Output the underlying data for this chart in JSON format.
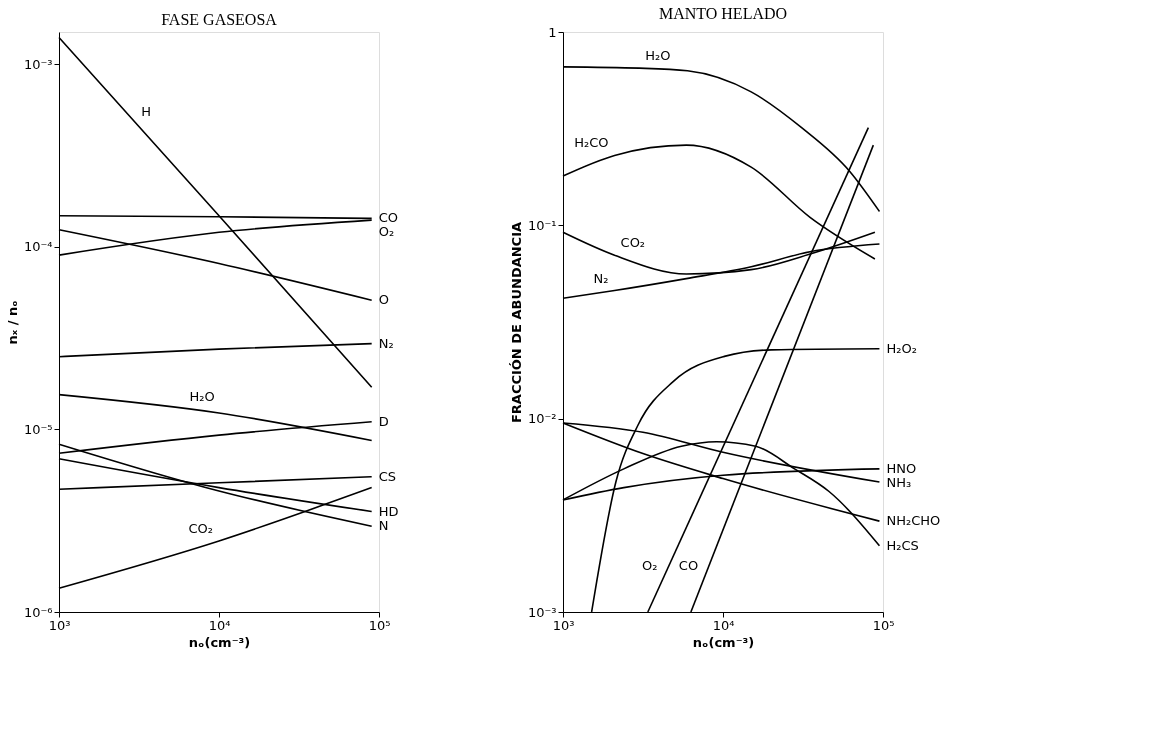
{
  "chart_data": [
    {
      "type": "line",
      "title": "FASE GASEOSA",
      "xlabel": "nₒ(cm⁻³)",
      "ylabel": "nₓ / nₒ",
      "log": "xy",
      "grid": false,
      "legend": false,
      "marker": "none",
      "line_style": "solid",
      "xlim": [
        1000,
        100000
      ],
      "ylim": [
        1e-06,
        0.0015
      ],
      "xticks": [
        {
          "value": 1000,
          "label": "10³"
        },
        {
          "value": 10000,
          "label": "10⁴"
        },
        {
          "value": 100000,
          "label": "10⁵"
        }
      ],
      "yticks": [
        {
          "value": 1e-06,
          "label": "10⁻⁶"
        },
        {
          "value": 1e-05,
          "label": "10⁻⁵"
        },
        {
          "value": 0.0001,
          "label": "10⁻⁴"
        },
        {
          "value": 0.001,
          "label": "10⁻³"
        }
      ],
      "series": [
        {
          "color": "#000000",
          "x": [
            1000,
            10000,
            90000
          ],
          "values": [
            0.0014,
            0.000148,
            1.7e-05
          ]
        },
        {
          "name": "CO",
          "color": "#000000",
          "x": [
            1000,
            10000,
            90000
          ],
          "values": [
            0.000148,
            0.000146,
            0.000143
          ]
        },
        {
          "name": "O₂",
          "color": "#000000",
          "x": [
            1000,
            10000,
            90000
          ],
          "values": [
            9e-05,
            0.00012,
            0.00014
          ]
        },
        {
          "name": "O",
          "color": "#000000",
          "x": [
            1000,
            10000,
            90000
          ],
          "values": [
            0.000124,
            8.1e-05,
            5.1e-05
          ]
        },
        {
          "name": "N₂",
          "color": "#000000",
          "x": [
            1000,
            10000,
            90000
          ],
          "values": [
            2.5e-05,
            2.75e-05,
            2.95e-05
          ]
        },
        {
          "color": "#000000",
          "x": [
            1000,
            10000,
            90000
          ],
          "values": [
            1.55e-05,
            1.23e-05,
            8.7e-06
          ]
        },
        {
          "name": "D",
          "color": "#000000",
          "x": [
            1000,
            10000,
            90000
          ],
          "values": [
            7.4e-06,
            9.3e-06,
            1.1e-05
          ]
        },
        {
          "name": "CS",
          "color": "#000000",
          "x": [
            1000,
            10000,
            90000
          ],
          "values": [
            4.7e-06,
            5.1e-06,
            5.5e-06
          ]
        },
        {
          "name": "HD",
          "color": "#000000",
          "x": [
            1000,
            10000,
            90000
          ],
          "values": [
            6.9e-06,
            4.8e-06,
            3.55e-06
          ]
        },
        {
          "name": "N",
          "color": "#000000",
          "x": [
            1000,
            10000,
            90000
          ],
          "values": [
            8.3e-06,
            4.6e-06,
            2.95e-06
          ]
        },
        {
          "color": "#000000",
          "x": [
            1000,
            10000,
            90000
          ],
          "values": [
            1.35e-06,
            2.45e-06,
            4.8e-06
          ]
        }
      ],
      "annotations": [
        {
          "text": "H",
          "x": 3000,
          "y": 0.00047
        },
        {
          "text": "H₂O",
          "x": 6000,
          "y": 1.29e-05
        },
        {
          "text": "CO₂",
          "x": 10000,
          "y": 2.45e-06
        }
      ]
    },
    {
      "type": "line",
      "title": "MANTO HELADO",
      "xlabel": "nₒ(cm⁻³)",
      "ylabel": "FRACCIÓN DE ABUNDANCIA",
      "log": "xy",
      "grid": false,
      "legend": false,
      "marker": "none",
      "line_style": "solid",
      "xlim": [
        1000,
        100000
      ],
      "ylim": [
        0.001,
        1
      ],
      "xticks": [
        {
          "value": 1000,
          "label": "10³"
        },
        {
          "value": 10000,
          "label": "10⁴"
        },
        {
          "value": 100000,
          "label": "10⁵"
        }
      ],
      "yticks": [
        {
          "value": 0.001,
          "label": "10⁻³"
        },
        {
          "value": 0.01,
          "label": "10⁻²"
        },
        {
          "value": 0.1,
          "label": "10⁻¹"
        },
        1
      ],
      "series": [
        {
          "color": "#000000",
          "x": [
            1000,
            3000,
            6000,
            15000,
            31000,
            62000,
            95000
          ],
          "values": [
            0.66,
            0.65,
            0.63,
            0.49,
            0.32,
            0.19,
            0.118
          ]
        },
        {
          "color": "#000000",
          "x": [
            1000,
            2100,
            5900,
            15000,
            35000,
            89000
          ],
          "values": [
            0.18,
            0.23,
            0.26,
            0.2,
            0.11,
            0.067
          ]
        },
        {
          "color": "#000000",
          "x": [
            1000,
            2100,
            5900,
            15000,
            35000,
            89000
          ],
          "values": [
            0.092,
            0.07,
            0.056,
            0.059,
            0.071,
            0.092
          ]
        },
        {
          "color": "#000000",
          "x": [
            1000,
            2100,
            5900,
            15000,
            35000,
            95000
          ],
          "values": [
            0.042,
            0.046,
            0.053,
            0.061,
            0.073,
            0.08
          ]
        },
        {
          "name": "H₂O₂",
          "color": "#000000",
          "x": [
            1510,
            2140,
            2950,
            4900,
            10200,
            20000,
            95000
          ],
          "values": [
            0.001,
            0.0047,
            0.0093,
            0.0156,
            0.021,
            0.0227,
            0.023
          ]
        },
        {
          "color": "#000000",
          "x": [
            3390,
            81000
          ],
          "values": [
            0.001,
            0.32
          ]
        },
        {
          "color": "#000000",
          "x": [
            6300,
            87000
          ],
          "values": [
            0.001,
            0.26
          ]
        },
        {
          "name": "HNO",
          "color": "#000000",
          "x": [
            1000,
            2400,
            10000,
            95000
          ],
          "values": [
            0.0038,
            0.0044,
            0.0051,
            0.0055
          ]
        },
        {
          "name": "NH₃",
          "color": "#000000",
          "x": [
            1000,
            3160,
            10000,
            95000
          ],
          "values": [
            0.0095,
            0.0085,
            0.0067,
            0.0047
          ]
        },
        {
          "name": "NH₂CHO",
          "color": "#000000",
          "x": [
            1000,
            3160,
            10000,
            95000
          ],
          "values": [
            0.0095,
            0.0066,
            0.0049,
            0.00295
          ]
        },
        {
          "name": "H₂CS",
          "color": "#000000",
          "x": [
            1000,
            2400,
            5500,
            9100,
            16000,
            28000,
            46000,
            95000
          ],
          "values": [
            0.0038,
            0.0055,
            0.0072,
            0.0076,
            0.0072,
            0.0055,
            0.0042,
            0.0022
          ]
        }
      ],
      "annotations": [
        {
          "text": "H₂O",
          "x": 3000,
          "y": 0.65
        },
        {
          "text": "H₂CO",
          "x": 2100,
          "y": 0.23
        },
        {
          "text": "CO₂",
          "x": 2100,
          "y": 0.07
        },
        {
          "text": "N₂",
          "x": 2100,
          "y": 0.046
        },
        {
          "text": "O₂",
          "x": 4240,
          "y": 0.0015
        },
        {
          "text": "CO",
          "x": 7620,
          "y": 0.0015
        }
      ]
    }
  ]
}
